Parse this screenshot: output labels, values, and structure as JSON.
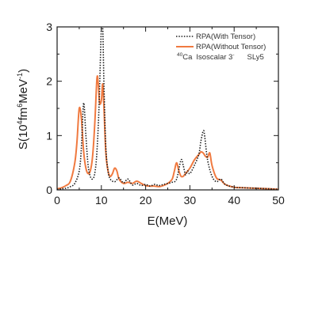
{
  "colors": {
    "with_tensor": "#1b1b1b",
    "without_tensor": "#f07a40",
    "axis": "#1a1a1a",
    "background": "#ffffff"
  },
  "chart_data": {
    "type": "line",
    "xlabel": "E(MeV)",
    "ylabel": {
      "base": "S(10",
      "sup1": "4",
      "mid1": "fm",
      "sup2": "6",
      "mid2": "MeV",
      "sup3": "-1",
      "end": ")"
    },
    "xlim": [
      0,
      50
    ],
    "ylim": [
      0,
      3
    ],
    "xticks": [
      0,
      10,
      20,
      30,
      40,
      50
    ],
    "xtick_labels": [
      "0",
      "10",
      "20",
      "30",
      "40",
      "50"
    ],
    "yticks": [
      0,
      1,
      2,
      3
    ],
    "ytick_labels": [
      "0",
      "1",
      "2",
      "3"
    ],
    "grid": false,
    "legend_position": "top-right",
    "annotation": {
      "mass_number": "40",
      "nucleus": "Ca",
      "label": "Isoscalar 3",
      "superscript": "-",
      "force": "SLy5"
    },
    "series": [
      {
        "name": "RPA(With Tensor)",
        "style": "dotted",
        "x": [
          0,
          1,
          2,
          3,
          4,
          5,
          5.5,
          6,
          6.5,
          7,
          7.5,
          8,
          8.5,
          9,
          9.5,
          10,
          10.3,
          10.6,
          11,
          11.5,
          12,
          13,
          14,
          15,
          16,
          17,
          18,
          19,
          20,
          21,
          22,
          23,
          24,
          25,
          26,
          27,
          28,
          28.5,
          29,
          29.5,
          30,
          31,
          32,
          32.5,
          33,
          33.3,
          34,
          35,
          36,
          37,
          38,
          40,
          42,
          45,
          48,
          50
        ],
        "y": [
          0.01,
          0.02,
          0.03,
          0.06,
          0.12,
          0.35,
          0.8,
          1.6,
          1.0,
          0.45,
          0.25,
          0.2,
          0.3,
          0.7,
          1.6,
          3.0,
          3.0,
          1.9,
          0.8,
          0.35,
          0.2,
          0.15,
          0.22,
          0.13,
          0.2,
          0.09,
          0.12,
          0.08,
          0.1,
          0.07,
          0.1,
          0.08,
          0.1,
          0.12,
          0.14,
          0.2,
          0.55,
          0.45,
          0.28,
          0.35,
          0.3,
          0.45,
          0.65,
          0.9,
          1.08,
          1.02,
          0.55,
          0.25,
          0.15,
          0.2,
          0.1,
          0.05,
          0.04,
          0.03,
          0.02,
          0.01
        ]
      },
      {
        "name": "RPA(Without Tensor)",
        "style": "solid",
        "x": [
          0,
          1,
          2,
          3,
          4,
          4.5,
          5,
          5.5,
          6,
          6.5,
          7,
          7.5,
          8,
          8.5,
          9,
          9.3,
          9.6,
          10,
          10.3,
          10.6,
          11,
          11.5,
          12,
          12.5,
          13,
          13.5,
          14,
          15,
          16,
          17,
          18,
          19,
          20,
          21,
          22,
          23,
          24,
          25,
          26,
          26.5,
          27,
          27.5,
          28,
          28.5,
          29,
          30,
          31,
          32,
          32.5,
          33,
          33.5,
          34,
          34.5,
          35,
          36,
          37,
          38,
          40,
          42,
          45,
          48,
          50
        ],
        "y": [
          0.02,
          0.04,
          0.08,
          0.16,
          0.5,
          0.9,
          1.5,
          1.3,
          0.7,
          0.4,
          0.3,
          0.35,
          0.6,
          1.2,
          2.05,
          1.95,
          1.6,
          1.65,
          1.95,
          1.5,
          0.7,
          0.35,
          0.25,
          0.3,
          0.4,
          0.35,
          0.2,
          0.12,
          0.14,
          0.12,
          0.16,
          0.12,
          0.08,
          0.07,
          0.07,
          0.06,
          0.08,
          0.12,
          0.2,
          0.35,
          0.5,
          0.35,
          0.25,
          0.25,
          0.3,
          0.4,
          0.55,
          0.65,
          0.7,
          0.68,
          0.62,
          0.6,
          0.68,
          0.45,
          0.22,
          0.18,
          0.1,
          0.05,
          0.04,
          0.03,
          0.02,
          0.01
        ]
      }
    ]
  }
}
